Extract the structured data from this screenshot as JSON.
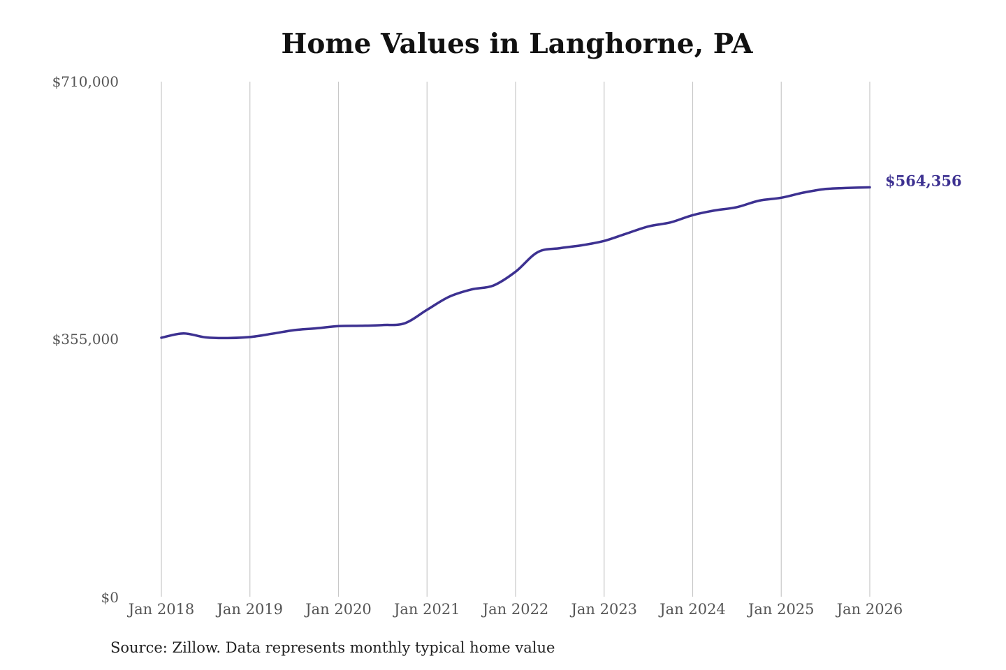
{
  "chart_data": {
    "type": "line",
    "title": "Home Values in Langhorne, PA",
    "source": "Source: Zillow. Data represents monthly typical home value",
    "ylim": [
      0,
      710000
    ],
    "y_ticks": [
      "$0",
      "$355,000",
      "$710,000"
    ],
    "y_tick_values": [
      0,
      355000,
      710000
    ],
    "x_ticks": [
      "Jan 2018",
      "Jan 2019",
      "Jan 2020",
      "Jan 2021",
      "Jan 2022",
      "Jan 2023",
      "Jan 2024",
      "Jan 2025",
      "Jan 2026"
    ],
    "x_range": [
      "2018-01",
      "2026-01"
    ],
    "grid": "vertical",
    "line_color": "#3d3191",
    "end_label": "$564,356",
    "series": [
      {
        "x": [
          "2018-01",
          "2018-04",
          "2018-07",
          "2018-10",
          "2019-01",
          "2019-04",
          "2019-07",
          "2019-10",
          "2020-01",
          "2020-04",
          "2020-07",
          "2020-10",
          "2021-01",
          "2021-04",
          "2021-07",
          "2021-10",
          "2022-01",
          "2022-04",
          "2022-07",
          "2022-10",
          "2023-01",
          "2023-04",
          "2023-07",
          "2023-10",
          "2024-01",
          "2024-04",
          "2024-07",
          "2024-10",
          "2025-01",
          "2025-04",
          "2025-07",
          "2025-10",
          "2026-01"
        ],
        "values": [
          357000,
          363000,
          357500,
          356500,
          358000,
          362500,
          367500,
          370000,
          373000,
          373500,
          374500,
          377000,
          395500,
          413500,
          423500,
          429000,
          448000,
          475000,
          480500,
          484500,
          490500,
          500500,
          510500,
          516000,
          526000,
          532500,
          537000,
          546000,
          550000,
          557000,
          562000,
          563500,
          564356
        ]
      }
    ]
  }
}
